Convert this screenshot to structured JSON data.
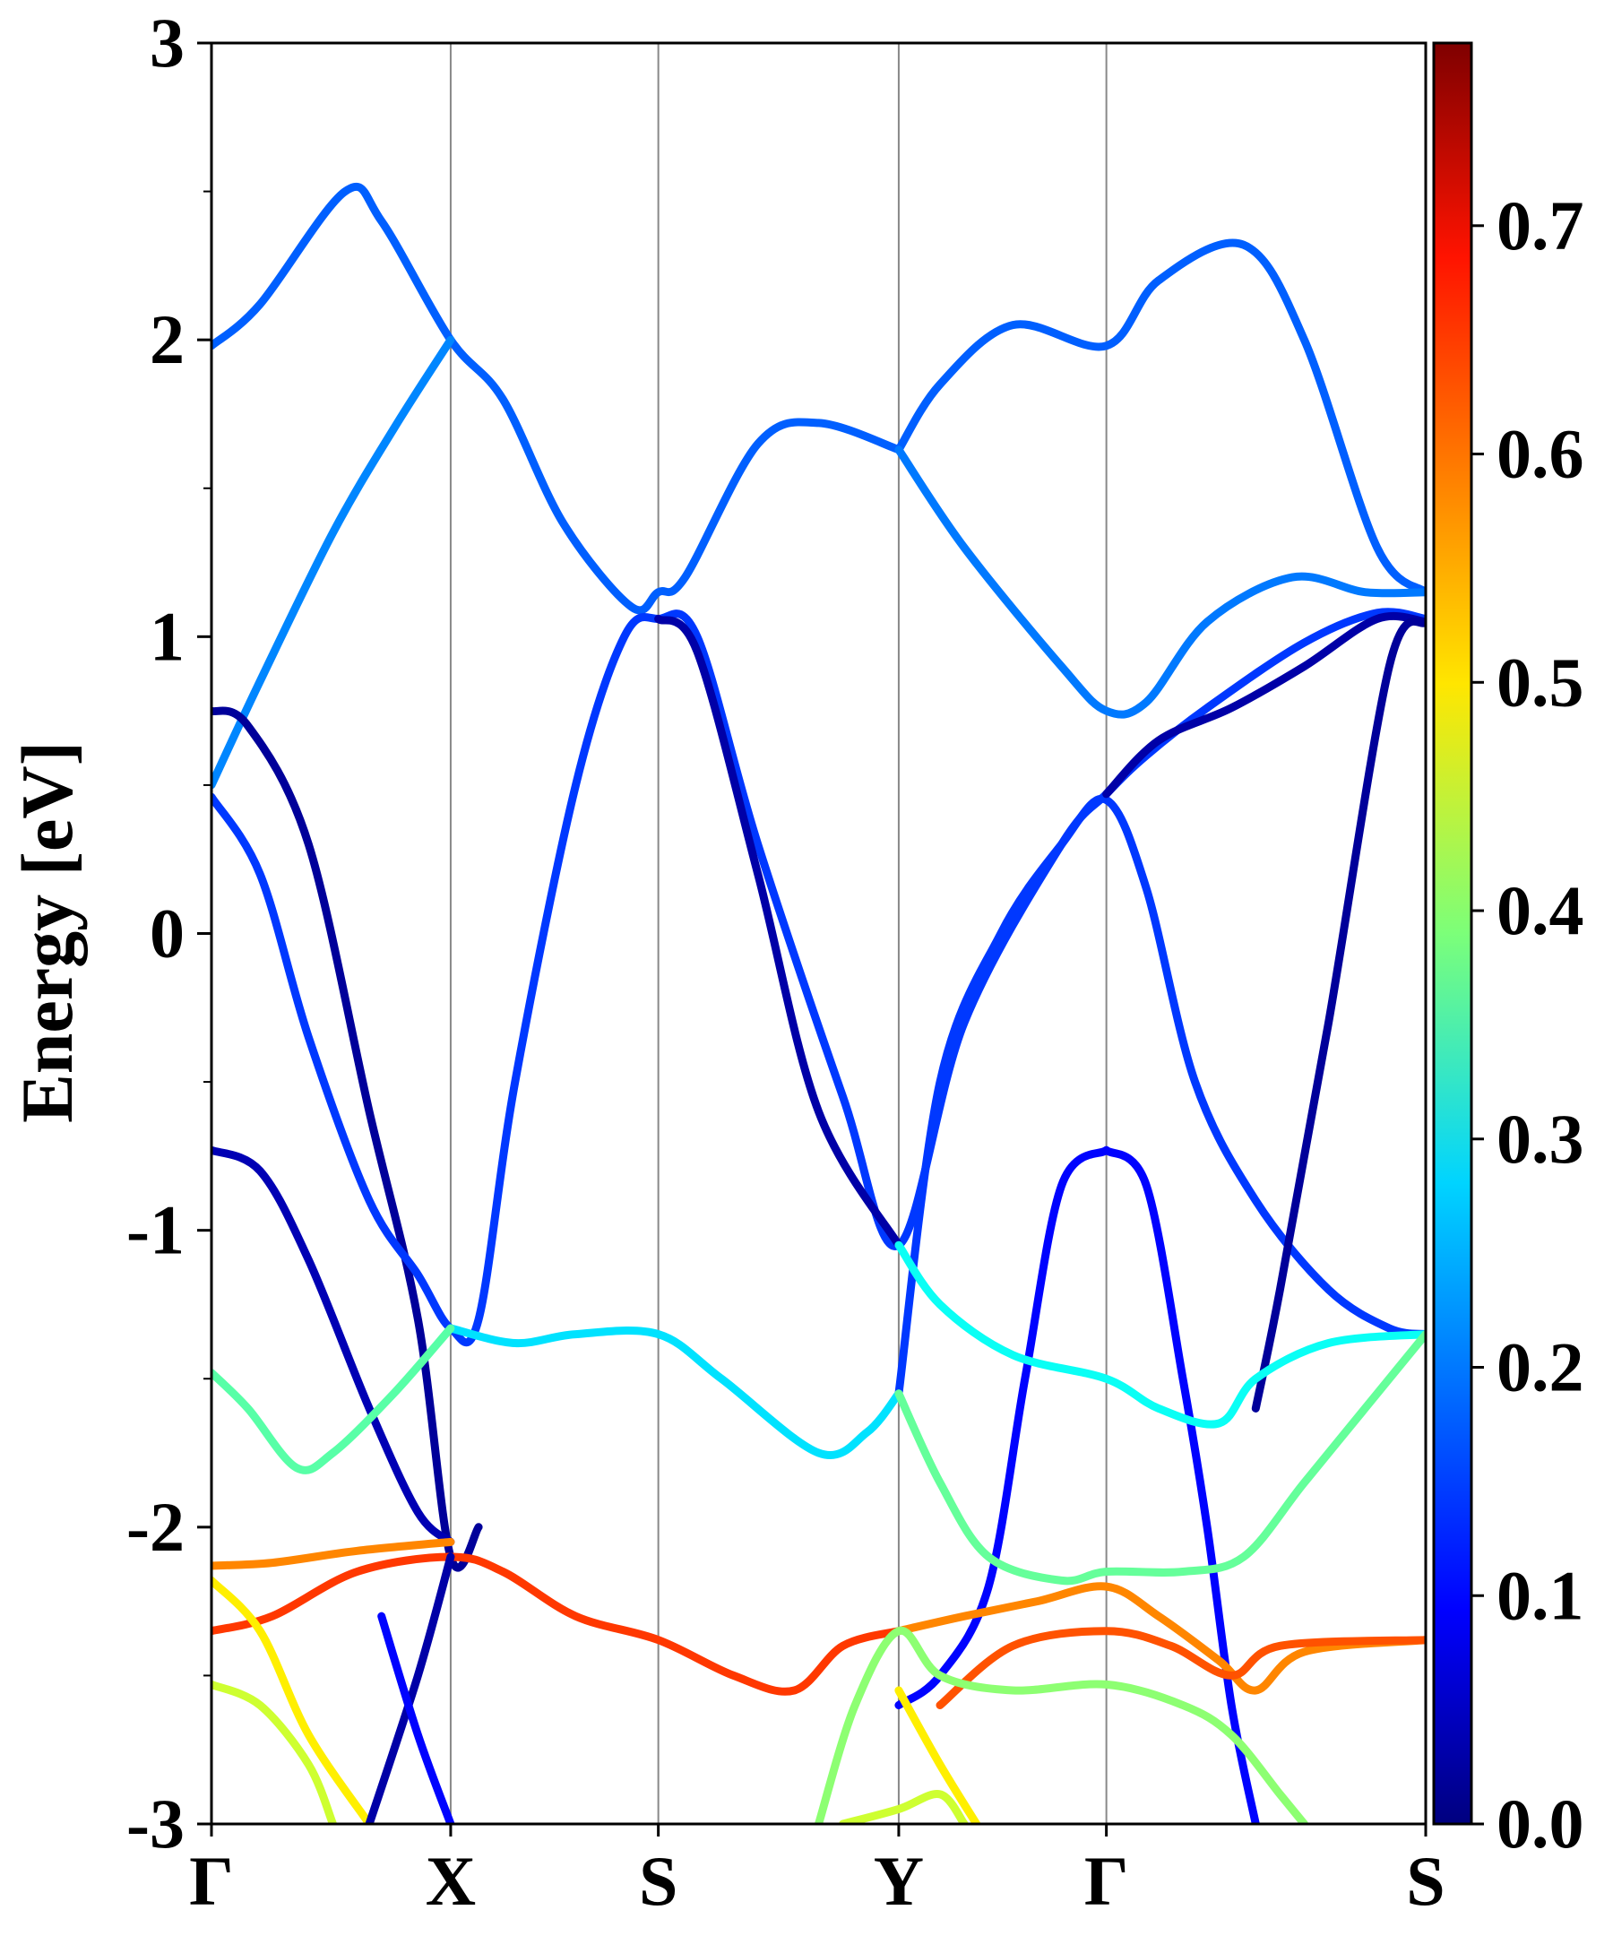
{
  "chart_data": {
    "type": "line",
    "title": "",
    "ylabel": "Energy [eV]",
    "xlabel": "",
    "ylim": [
      -3,
      3
    ],
    "yticks": [
      "3",
      "2",
      "1",
      "0",
      "-1",
      "-2",
      "-3"
    ],
    "ytick_values": [
      3,
      2,
      1,
      0,
      -1,
      -2,
      -3
    ],
    "kpath": {
      "labels": [
        "Γ",
        "X",
        "S",
        "Y",
        "Γ",
        "S"
      ],
      "positions": [
        0.0,
        0.197,
        0.368,
        0.566,
        0.737,
        1.0
      ]
    },
    "colorbar": {
      "colormap": "jet",
      "range": [
        0.0,
        0.78
      ],
      "ticks": [
        "0.0",
        "0.1",
        "0.2",
        "0.3",
        "0.4",
        "0.5",
        "0.6",
        "0.7"
      ],
      "tick_values": [
        0.0,
        0.1,
        0.2,
        0.3,
        0.4,
        0.5,
        0.6,
        0.7
      ]
    },
    "grid": false,
    "vertical_lines_at_kpoints": true,
    "series": [
      {
        "color_value": 0.17,
        "points": [
          [
            0,
            1.98
          ],
          [
            0.04,
            2.12
          ],
          [
            0.11,
            2.5
          ],
          [
            0.14,
            2.4
          ],
          [
            0.197,
            2.0
          ],
          [
            0.24,
            1.8
          ],
          [
            0.29,
            1.38
          ],
          [
            0.346,
            1.1
          ],
          [
            0.368,
            1.15
          ],
          [
            0.39,
            1.2
          ],
          [
            0.45,
            1.65
          ],
          [
            0.5,
            1.72
          ],
          [
            0.566,
            1.63
          ]
        ]
      },
      {
        "color_value": 0.2,
        "points": [
          [
            0,
            0.5
          ],
          [
            0.04,
            0.85
          ],
          [
            0.1,
            1.35
          ],
          [
            0.15,
            1.7
          ],
          [
            0.197,
            2.0
          ]
        ]
      },
      {
        "color_value": 0.17,
        "points": [
          [
            0.566,
            1.63
          ],
          [
            0.6,
            1.85
          ],
          [
            0.66,
            2.05
          ],
          [
            0.737,
            1.98
          ],
          [
            0.78,
            2.2
          ],
          [
            0.85,
            2.32
          ],
          [
            0.9,
            2.0
          ],
          [
            0.96,
            1.3
          ],
          [
            1.0,
            1.15
          ]
        ]
      },
      {
        "color_value": 0.19,
        "points": [
          [
            0.566,
            1.63
          ],
          [
            0.62,
            1.3
          ],
          [
            0.7,
            0.9
          ],
          [
            0.737,
            0.75
          ],
          [
            0.77,
            0.78
          ],
          [
            0.82,
            1.05
          ],
          [
            0.89,
            1.2
          ],
          [
            0.95,
            1.15
          ],
          [
            1.0,
            1.15
          ]
        ]
      },
      {
        "color_value": 0.02,
        "points": [
          [
            0,
            0.75
          ],
          [
            0.03,
            0.7
          ],
          [
            0.08,
            0.3
          ],
          [
            0.13,
            -0.6
          ],
          [
            0.17,
            -1.3
          ],
          [
            0.197,
            -2.1
          ],
          [
            0.22,
            -2.0
          ]
        ]
      },
      {
        "color_value": 0.14,
        "points": [
          [
            0,
            0.46
          ],
          [
            0.04,
            0.2
          ],
          [
            0.08,
            -0.35
          ],
          [
            0.13,
            -0.9
          ],
          [
            0.17,
            -1.15
          ],
          [
            0.197,
            -1.33
          ],
          [
            0.22,
            -1.3
          ],
          [
            0.25,
            -0.5
          ],
          [
            0.3,
            0.5
          ],
          [
            0.34,
            1.0
          ],
          [
            0.368,
            1.06
          ],
          [
            0.4,
            1.0
          ],
          [
            0.45,
            0.3
          ],
          [
            0.52,
            -0.55
          ],
          [
            0.566,
            -1.05
          ],
          [
            0.62,
            -0.3
          ],
          [
            0.7,
            0.3
          ],
          [
            0.737,
            0.47
          ],
          [
            0.77,
            0.6
          ],
          [
            0.82,
            0.76
          ],
          [
            0.9,
            0.98
          ],
          [
            0.96,
            1.08
          ],
          [
            1.0,
            1.06
          ]
        ]
      },
      {
        "color_value": 0.03,
        "points": [
          [
            0.368,
            1.06
          ],
          [
            0.4,
            0.95
          ],
          [
            0.45,
            0.2
          ],
          [
            0.5,
            -0.6
          ],
          [
            0.566,
            -1.05
          ]
        ]
      },
      {
        "color_value": 0.14,
        "points": [
          [
            0.566,
            -1.55
          ],
          [
            0.6,
            -0.5
          ],
          [
            0.65,
            0.0
          ],
          [
            0.7,
            0.3
          ],
          [
            0.737,
            0.45
          ],
          [
            0.77,
            0.15
          ],
          [
            0.81,
            -0.5
          ],
          [
            0.86,
            -0.9
          ],
          [
            0.92,
            -1.2
          ],
          [
            0.97,
            -1.33
          ],
          [
            1.0,
            -1.35
          ]
        ]
      },
      {
        "color_value": 0.03,
        "points": [
          [
            0.737,
            0.47
          ],
          [
            0.78,
            0.65
          ],
          [
            0.84,
            0.76
          ],
          [
            0.9,
            0.9
          ],
          [
            0.96,
            1.06
          ],
          [
            1.0,
            1.05
          ]
        ]
      },
      {
        "color_value": 0.02,
        "points": [
          [
            1.0,
            1.05
          ],
          [
            0.97,
            0.9
          ],
          [
            0.92,
            -0.3
          ],
          [
            0.88,
            -1.2
          ],
          [
            0.86,
            -1.6
          ]
        ]
      },
      {
        "color_value": 0.04,
        "points": [
          [
            0,
            -0.73
          ],
          [
            0.04,
            -0.8
          ],
          [
            0.08,
            -1.1
          ],
          [
            0.13,
            -1.6
          ],
          [
            0.17,
            -1.95
          ],
          [
            0.197,
            -2.05
          ]
        ]
      },
      {
        "color_value": 0.1,
        "points": [
          [
            0.737,
            -0.73
          ],
          [
            0.7,
            -0.85
          ],
          [
            0.67,
            -1.5
          ],
          [
            0.64,
            -2.2
          ],
          [
            0.6,
            -2.5
          ],
          [
            0.566,
            -2.6
          ]
        ]
      },
      {
        "color_value": 0.1,
        "points": [
          [
            0.737,
            -0.73
          ],
          [
            0.77,
            -0.85
          ],
          [
            0.8,
            -1.5
          ],
          [
            0.82,
            -2.0
          ],
          [
            0.84,
            -2.6
          ],
          [
            0.86,
            -3.0
          ]
        ]
      },
      {
        "color_value": 0.27,
        "points": [
          [
            0.197,
            -1.33
          ],
          [
            0.25,
            -1.38
          ],
          [
            0.3,
            -1.35
          ],
          [
            0.368,
            -1.35
          ],
          [
            0.42,
            -1.5
          ],
          [
            0.5,
            -1.75
          ],
          [
            0.54,
            -1.68
          ],
          [
            0.566,
            -1.55
          ]
        ]
      },
      {
        "color_value": 0.3,
        "points": [
          [
            0.566,
            -1.05
          ],
          [
            0.6,
            -1.25
          ],
          [
            0.66,
            -1.42
          ],
          [
            0.737,
            -1.5
          ],
          [
            0.78,
            -1.6
          ],
          [
            0.83,
            -1.65
          ],
          [
            0.86,
            -1.5
          ],
          [
            0.92,
            -1.38
          ],
          [
            1.0,
            -1.35
          ]
        ]
      },
      {
        "color_value": 0.36,
        "points": [
          [
            0,
            -1.48
          ],
          [
            0.03,
            -1.6
          ],
          [
            0.07,
            -1.8
          ],
          [
            0.1,
            -1.75
          ],
          [
            0.15,
            -1.55
          ],
          [
            0.197,
            -1.33
          ]
        ]
      },
      {
        "color_value": 0.37,
        "points": [
          [
            0.566,
            -1.55
          ],
          [
            0.6,
            -1.85
          ],
          [
            0.64,
            -2.1
          ],
          [
            0.7,
            -2.18
          ],
          [
            0.737,
            -2.15
          ],
          [
            0.8,
            -2.15
          ],
          [
            0.85,
            -2.1
          ],
          [
            0.9,
            -1.85
          ],
          [
            0.96,
            -1.55
          ],
          [
            1.0,
            -1.35
          ]
        ]
      },
      {
        "color_value": 0.58,
        "points": [
          [
            0,
            -2.13
          ],
          [
            0.05,
            -2.12
          ],
          [
            0.12,
            -2.08
          ],
          [
            0.197,
            -2.05
          ]
        ]
      },
      {
        "color_value": 0.64,
        "points": [
          [
            0,
            -2.35
          ],
          [
            0.05,
            -2.3
          ],
          [
            0.12,
            -2.15
          ],
          [
            0.197,
            -2.1
          ],
          [
            0.24,
            -2.15
          ],
          [
            0.3,
            -2.3
          ],
          [
            0.368,
            -2.38
          ],
          [
            0.43,
            -2.5
          ],
          [
            0.48,
            -2.55
          ],
          [
            0.52,
            -2.4
          ],
          [
            0.566,
            -2.35
          ]
        ]
      },
      {
        "color_value": 0.58,
        "points": [
          [
            0.566,
            -2.35
          ],
          [
            0.62,
            -2.3
          ],
          [
            0.68,
            -2.25
          ],
          [
            0.737,
            -2.2
          ],
          [
            0.78,
            -2.3
          ],
          [
            0.83,
            -2.45
          ],
          [
            0.86,
            -2.55
          ],
          [
            0.9,
            -2.42
          ],
          [
            1.0,
            -2.38
          ]
        ]
      },
      {
        "color_value": 0.62,
        "points": [
          [
            0.6,
            -2.6
          ],
          [
            0.66,
            -2.4
          ],
          [
            0.737,
            -2.35
          ],
          [
            0.79,
            -2.4
          ],
          [
            0.84,
            -2.5
          ],
          [
            0.88,
            -2.4
          ],
          [
            1.0,
            -2.38
          ]
        ]
      },
      {
        "color_value": 0.5,
        "points": [
          [
            0,
            -2.18
          ],
          [
            0.04,
            -2.35
          ],
          [
            0.08,
            -2.7
          ],
          [
            0.13,
            -3.0
          ]
        ]
      },
      {
        "color_value": 0.45,
        "points": [
          [
            0,
            -2.53
          ],
          [
            0.04,
            -2.6
          ],
          [
            0.08,
            -2.8
          ],
          [
            0.1,
            -3.0
          ]
        ]
      },
      {
        "color_value": 0.4,
        "points": [
          [
            0.5,
            -3.0
          ],
          [
            0.53,
            -2.6
          ],
          [
            0.566,
            -2.35
          ],
          [
            0.6,
            -2.5
          ],
          [
            0.66,
            -2.55
          ],
          [
            0.737,
            -2.53
          ],
          [
            0.8,
            -2.6
          ],
          [
            0.84,
            -2.7
          ],
          [
            0.88,
            -2.9
          ],
          [
            0.9,
            -3.0
          ]
        ]
      },
      {
        "color_value": 0.5,
        "points": [
          [
            0.566,
            -2.55
          ],
          [
            0.6,
            -2.8
          ],
          [
            0.63,
            -3.0
          ]
        ]
      },
      {
        "color_value": 0.45,
        "points": [
          [
            0.52,
            -3.0
          ],
          [
            0.566,
            -2.95
          ],
          [
            0.6,
            -2.9
          ],
          [
            0.62,
            -3.0
          ]
        ]
      },
      {
        "color_value": 0.03,
        "points": [
          [
            0.13,
            -3.0
          ],
          [
            0.17,
            -2.5
          ],
          [
            0.197,
            -2.1
          ]
        ]
      },
      {
        "color_value": 0.1,
        "points": [
          [
            0.197,
            -3.0
          ],
          [
            0.17,
            -2.7
          ],
          [
            0.14,
            -2.3
          ]
        ]
      }
    ]
  }
}
